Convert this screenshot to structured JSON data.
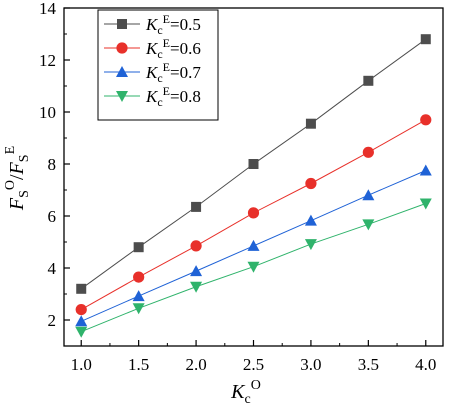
{
  "chart_data": {
    "type": "line",
    "x": [
      1.0,
      1.5,
      2.0,
      2.5,
      3.0,
      3.5,
      4.0
    ],
    "xlim": [
      0.85,
      4.15
    ],
    "ylim": [
      1.0,
      14.0
    ],
    "xticks": [
      1.0,
      1.5,
      2.0,
      2.5,
      3.0,
      3.5,
      4.0
    ],
    "xtick_labels": [
      "1.0",
      "1.5",
      "2.0",
      "2.5",
      "3.0",
      "3.5",
      "4.0"
    ],
    "yticks": [
      2,
      4,
      6,
      8,
      10,
      12,
      14
    ],
    "ytick_labels": [
      "2",
      "4",
      "6",
      "8",
      "10",
      "12",
      "14"
    ],
    "xlabel": {
      "main": "K",
      "sub": "c",
      "sup": "O"
    },
    "ylabel": {
      "num_main": "F",
      "num_sub": "S",
      "num_sup": "O",
      "slash": "/",
      "den_main": "F",
      "den_sub": "S",
      "den_sup": "E"
    },
    "grid": false,
    "legend_position": "top-left",
    "series": [
      {
        "name": "K_c^E=0.5",
        "label_main": "K",
        "label_sub": "c",
        "label_sup": "E",
        "label_value": "=0.5",
        "color": "#4d4d4d",
        "marker": "square",
        "values": [
          3.2,
          4.8,
          6.35,
          8.0,
          9.55,
          11.2,
          12.8
        ]
      },
      {
        "name": "K_c^E=0.6",
        "label_main": "K",
        "label_sub": "c",
        "label_sup": "E",
        "label_value": "=0.6",
        "color": "#e8302a",
        "marker": "circle",
        "values": [
          2.4,
          3.65,
          4.85,
          6.12,
          7.25,
          8.45,
          9.7
        ]
      },
      {
        "name": "K_c^E=0.7",
        "label_main": "K",
        "label_sub": "c",
        "label_sup": "E",
        "label_value": "=0.7",
        "color": "#1f62d6",
        "marker": "triangle-up",
        "values": [
          1.95,
          2.92,
          3.88,
          4.85,
          5.82,
          6.8,
          7.75
        ]
      },
      {
        "name": "K_c^E=0.8",
        "label_main": "K",
        "label_sub": "c",
        "label_sup": "E",
        "label_value": "=0.8",
        "color": "#2fb36b",
        "marker": "triangle-down",
        "values": [
          1.55,
          2.45,
          3.28,
          4.05,
          4.92,
          5.68,
          6.48
        ]
      }
    ]
  }
}
